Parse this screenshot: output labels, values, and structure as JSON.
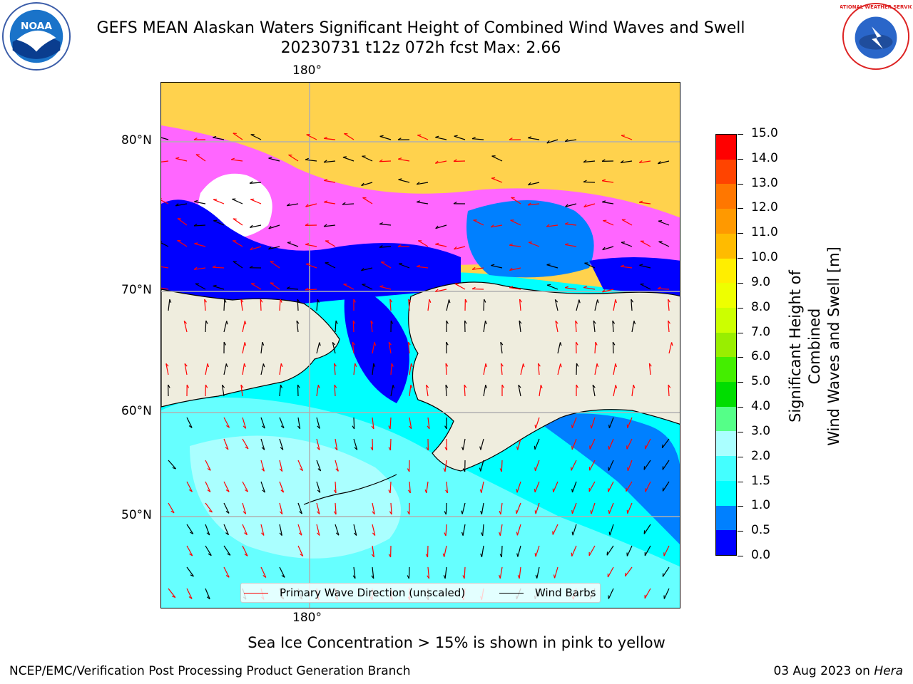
{
  "header": {
    "title_line1": "GEFS MEAN Alaskan Waters Significant Height of Combined Wind Waves and Swell",
    "title_line2": "20230731 t12z 072h fcst   Max: 2.66"
  },
  "logos": {
    "left": {
      "icon": "noaa-logo-icon",
      "text": "NOAA"
    },
    "right": {
      "icon": "nws-logo-icon",
      "text": "NATIONAL WEATHER SERVICE"
    }
  },
  "map": {
    "lat_labels": [
      "80°N",
      "70°N",
      "60°N",
      "50°N"
    ],
    "lon_labels": {
      "top": "180°",
      "bottom": "180°"
    },
    "land_color": "#efedde",
    "colors": {
      "sea_ice_pink": "#ff66ff",
      "sea_ice_yellow": "#ffd24d",
      "wave_arrow": "#ff0000",
      "wind_barb": "#000000"
    }
  },
  "legend": {
    "wave_label": "Primary Wave Direction (unscaled)",
    "wind_label": "Wind Barbs",
    "wave_color": "#ff0000",
    "wind_color": "#000000"
  },
  "colorbar": {
    "title_line1": "Significant Height of Combined",
    "title_line2": "Wind Waves and Swell [m]",
    "ticks": [
      "0.0",
      "0.5",
      "1.0",
      "1.5",
      "2.0",
      "3.0",
      "4.0",
      "5.0",
      "6.0",
      "7.0",
      "8.0",
      "9.0",
      "10.0",
      "11.0",
      "12.0",
      "13.0",
      "14.0",
      "15.0"
    ],
    "colors": [
      "#0000ff",
      "#0080ff",
      "#00ffff",
      "#44ffff",
      "#aaffff",
      "#55ff88",
      "#00dd00",
      "#44ee00",
      "#99ee00",
      "#ccff00",
      "#eeff00",
      "#ffee00",
      "#ffbb00",
      "#ff9900",
      "#ff7700",
      "#ff4400",
      "#ff0000"
    ]
  },
  "caption": "Sea Ice Concentration > 15% is shown in pink to yellow",
  "footer": {
    "left": "NCEP/EMC/Verification Post Processing Product Generation Branch",
    "right_date": "03 Aug 2023 on ",
    "right_machine": "Hera"
  }
}
